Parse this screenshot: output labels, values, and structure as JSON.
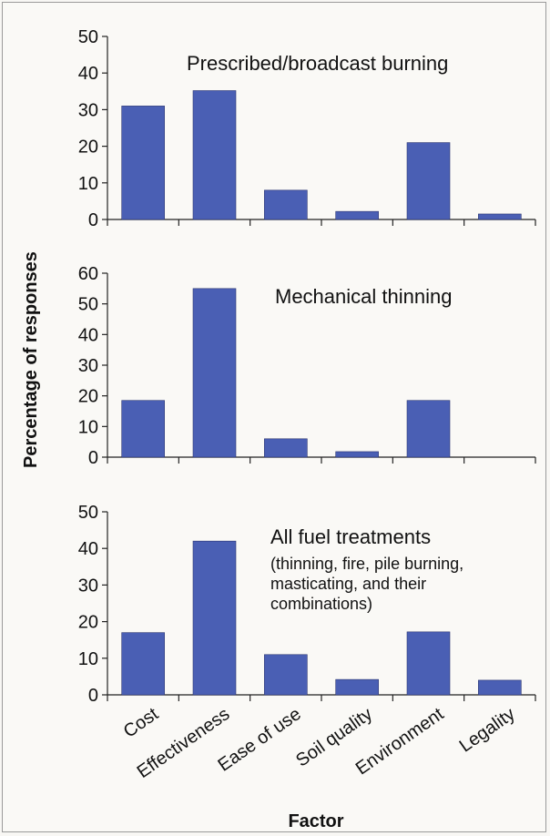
{
  "chart_data": {
    "type": "bar",
    "xlabel": "Factor",
    "ylabel": "Percentage of responses",
    "categories": [
      "Cost",
      "Effectiveness",
      "Ease of use",
      "Soil quality",
      "Environment",
      "Legality"
    ],
    "panels": [
      {
        "title": "Prescribed/broadcast burning",
        "subtitle": [],
        "ylim": [
          0,
          50
        ],
        "yticks": [
          0,
          10,
          20,
          30,
          40,
          50
        ],
        "values": [
          31,
          35.2,
          8,
          2.2,
          21,
          1.5
        ]
      },
      {
        "title": "Mechanical thinning",
        "subtitle": [],
        "ylim": [
          0,
          60
        ],
        "yticks": [
          0,
          10,
          20,
          30,
          40,
          50,
          60
        ],
        "values": [
          18.5,
          55,
          6,
          1.8,
          18.5,
          0
        ]
      },
      {
        "title": "All fuel treatments",
        "subtitle": [
          "(thinning, fire, pile burning,",
          "masticating, and their",
          "combinations)"
        ],
        "ylim": [
          0,
          50
        ],
        "yticks": [
          0,
          10,
          20,
          30,
          40,
          50
        ],
        "values": [
          17,
          42,
          11,
          4.2,
          17.2,
          4
        ]
      }
    ],
    "bar_color": "#4a5fb4",
    "grid": false,
    "legend": "none"
  }
}
